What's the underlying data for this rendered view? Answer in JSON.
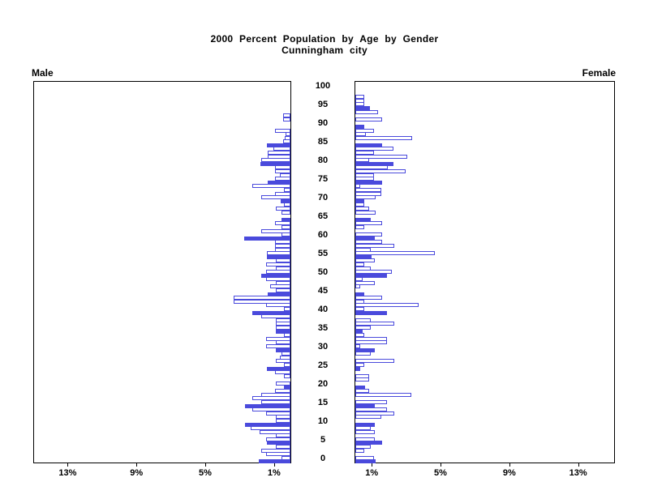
{
  "title": {
    "line1": "2000 Percent Population by Age by Gender",
    "line2": "Cunningham city"
  },
  "panels": {
    "left_header": "Male",
    "right_header": "Female"
  },
  "axes": {
    "age_tick_labels": [
      "0",
      "5",
      "10",
      "15",
      "20",
      "25",
      "30",
      "35",
      "40",
      "45",
      "50",
      "55",
      "60",
      "65",
      "70",
      "75",
      "80",
      "85",
      "90",
      "95",
      "100"
    ],
    "left_percent_tick_labels": [
      "13%",
      "9%",
      "5%",
      "1%"
    ],
    "left_percent_tick_values": [
      13,
      9,
      5,
      1
    ],
    "right_percent_tick_labels": [
      "1%",
      "5%",
      "9%",
      "13%"
    ],
    "right_percent_tick_values": [
      1,
      5,
      9,
      13
    ],
    "percent_axis_max": 15
  },
  "colors": {
    "bar_blue": "#4a4adc",
    "axis_black": "#000000",
    "background": "#ffffff"
  },
  "chart_data": {
    "type": "bar",
    "subtype": "population-pyramid",
    "title": "2000 Percent Population by Age by Gender",
    "subtitle": "Cunningham city",
    "x_unit": "% of total population",
    "age_range": [
      0,
      100
    ],
    "age_step": 1,
    "highlight_rule": "bars at ages divisible by 5 are solid-filled; all other ages are white bars with blue outline",
    "xlim_each_side": [
      0,
      15
    ],
    "series": [
      {
        "name": "Male",
        "side": "left",
        "note": "index equals age in years, value is percent",
        "values": [
          1.85,
          0.5,
          1.4,
          1.7,
          0.85,
          1.35,
          1.4,
          0.85,
          1.8,
          2.3,
          2.65,
          0.85,
          0.85,
          1.4,
          2.2,
          2.65,
          1.7,
          2.2,
          1.7,
          0.9,
          0.4,
          0.85,
          0,
          0.4,
          0.9,
          1.35,
          0.4,
          0.85,
          0.6,
          0.5,
          0.85,
          1.4,
          0.85,
          1.4,
          0.4,
          0.85,
          0.85,
          0.85,
          0.85,
          1.7,
          2.2,
          0.4,
          1.4,
          3.3,
          3.3,
          1.3,
          0.85,
          1.2,
          0.85,
          1.4,
          1.7,
          1.4,
          0.85,
          1.4,
          0.85,
          1.35,
          1.35,
          0.9,
          0.9,
          0.9,
          2.7,
          0.5,
          1.7,
          0.5,
          0.9,
          0.5,
          0,
          0.5,
          0.85,
          0.4,
          0.55,
          1.7,
          0.9,
          0.4,
          2.2,
          1.3,
          0.9,
          0.6,
          0.9,
          0.9,
          1.75,
          1.7,
          1.3,
          1.3,
          1.0,
          1.35,
          0.45,
          0.35,
          0.3,
          0.9,
          0,
          0,
          0.45,
          0.45,
          0,
          0,
          0,
          0,
          0,
          0,
          0
        ]
      },
      {
        "name": "Female",
        "side": "right",
        "note": "index equals age in years, value is percent",
        "values": [
          1.2,
          1.1,
          0,
          0.5,
          0.9,
          1.55,
          1.15,
          0,
          1.15,
          0.9,
          1.15,
          0,
          1.5,
          2.25,
          1.85,
          1.15,
          1.85,
          0,
          3.25,
          0.8,
          0.55,
          0,
          0.8,
          0.8,
          0,
          0.3,
          0.5,
          2.25,
          0,
          0.9,
          1.15,
          0.3,
          1.85,
          1.85,
          0.5,
          0.4,
          0.9,
          2.25,
          0.9,
          0,
          1.85,
          0.5,
          3.7,
          0.5,
          1.55,
          0.5,
          0,
          0.3,
          1.15,
          0.4,
          1.85,
          2.1,
          0.9,
          0.5,
          1.15,
          0.95,
          4.6,
          0.9,
          2.25,
          1.55,
          1.15,
          1.55,
          0,
          0.5,
          1.55,
          0.9,
          0,
          1.2,
          0.8,
          0.5,
          0.5,
          1.2,
          1.5,
          1.5,
          0.3,
          1.55,
          1.1,
          1.1,
          2.9,
          1.9,
          2.2,
          0.8,
          3.0,
          1.1,
          2.2,
          1.55,
          0,
          3.3,
          0.6,
          1.1,
          0.5,
          0,
          1.55,
          0,
          1.3,
          0.85,
          0.5,
          0.5,
          0.5,
          0,
          0
        ]
      }
    ]
  }
}
